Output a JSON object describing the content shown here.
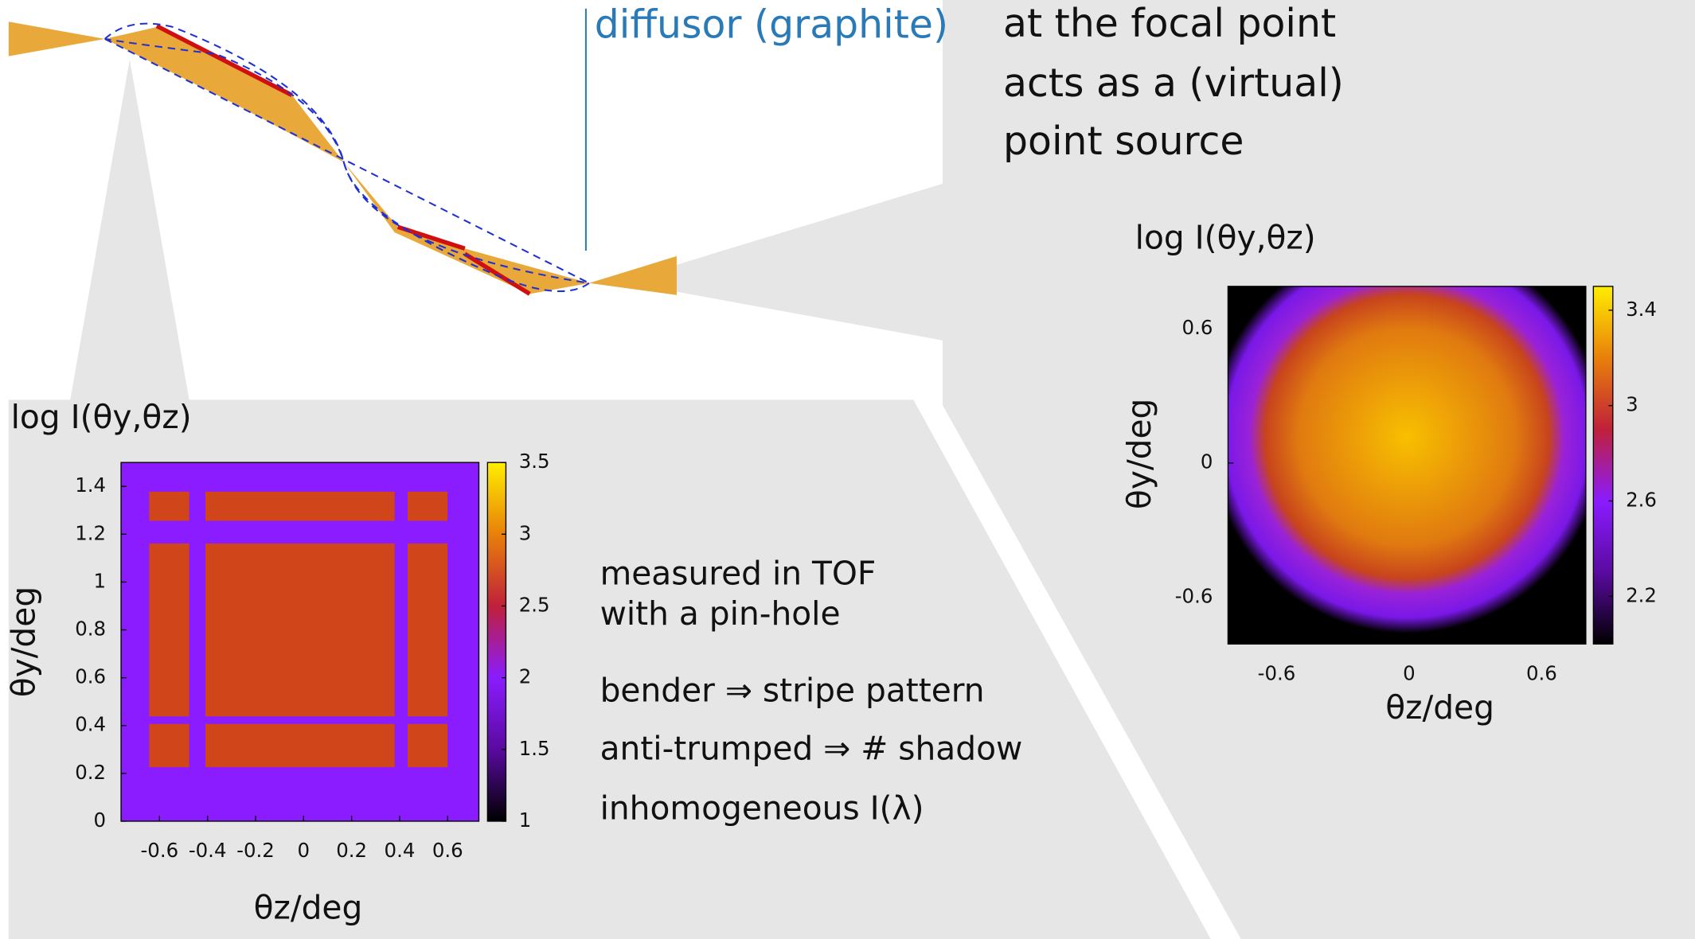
{
  "annotations": {
    "diffusor": "diffusor (graphite)",
    "focal": [
      "at the focal point",
      "acts as a (virtual)",
      "point source"
    ],
    "notes": [
      "measured in TOF",
      "with a pin-hole",
      "bender ⇒ stripe pattern",
      "anti-trumped ⇒ # shadow",
      "inhomogeneous I(λ)"
    ]
  },
  "chart_data": [
    {
      "type": "heatmap",
      "title": "log I(θy,θz)",
      "xlabel": "θz/deg",
      "ylabel": "θy/deg",
      "xlim": [
        -0.76,
        0.73
      ],
      "xticks": [
        -0.6,
        -0.4,
        -0.2,
        0,
        0.2,
        0.4,
        0.6
      ],
      "ylim": [
        0,
        1.5
      ],
      "yticks": [
        0,
        0.2,
        0.4,
        0.6,
        0.8,
        1,
        1.2,
        1.4
      ],
      "zlim": [
        1,
        3.5
      ],
      "zticks": [
        1,
        1.5,
        2,
        2.5,
        3,
        3.5
      ]
    },
    {
      "type": "heatmap",
      "title": "log I(θy,θz)",
      "xlabel": "θz/deg",
      "ylabel": "θy/deg",
      "xlim": [
        -0.82,
        0.8
      ],
      "xticks": [
        -0.6,
        0,
        0.6
      ],
      "ylim": [
        -0.81,
        0.79
      ],
      "yticks": [
        -0.6,
        0,
        0.6
      ],
      "zlim": [
        2,
        3.5
      ],
      "zticks": [
        2.2,
        2.6,
        3,
        3.4
      ]
    }
  ]
}
